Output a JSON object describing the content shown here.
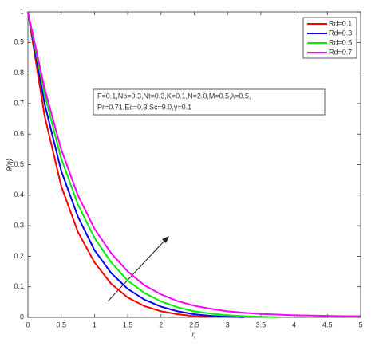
{
  "chart_data": {
    "type": "line",
    "xlabel": "η",
    "ylabel": "θ(η)",
    "x": [
      0,
      0.25,
      0.5,
      0.75,
      1,
      1.25,
      1.5,
      1.75,
      2,
      2.25,
      2.5,
      2.75,
      3,
      3.25,
      3.5,
      3.75,
      4,
      4.25,
      4.5,
      4.75,
      5
    ],
    "series": [
      {
        "name": "Rd=0.1",
        "color": "#ff0000",
        "values": [
          1,
          0.66,
          0.43,
          0.28,
          0.18,
          0.11,
          0.065,
          0.037,
          0.02,
          0.01,
          0.004,
          0.001,
          null,
          null,
          null,
          null,
          null,
          null,
          null,
          null,
          null
        ]
      },
      {
        "name": "Rd=0.3",
        "color": "#0000ff",
        "values": [
          1,
          0.7,
          0.48,
          0.33,
          0.22,
          0.145,
          0.093,
          0.058,
          0.035,
          0.02,
          0.01,
          0.005,
          0.002,
          0.0005,
          null,
          null,
          null,
          null,
          null,
          null,
          null
        ]
      },
      {
        "name": "Rd=0.5",
        "color": "#00ee00",
        "values": [
          1,
          0.73,
          0.52,
          0.37,
          0.26,
          0.18,
          0.12,
          0.08,
          0.052,
          0.033,
          0.02,
          0.012,
          0.007,
          0.004,
          0.002,
          0.0005,
          null,
          null,
          null,
          null,
          null
        ]
      },
      {
        "name": "Rd=0.7",
        "color": "#ff00ff",
        "values": [
          1,
          0.75,
          0.55,
          0.4,
          0.29,
          0.21,
          0.15,
          0.105,
          0.075,
          0.053,
          0.038,
          0.028,
          0.02,
          0.015,
          0.011,
          0.009,
          0.007,
          0.006,
          0.005,
          0.004,
          0.004
        ]
      }
    ],
    "xlim": [
      0,
      5
    ],
    "ylim": [
      0,
      1
    ],
    "xticks": [
      0,
      0.5,
      1,
      1.5,
      2,
      2.5,
      3,
      3.5,
      4,
      4.5,
      5
    ],
    "yticks": [
      0,
      0.1,
      0.2,
      0.3,
      0.4,
      0.5,
      0.6,
      0.7,
      0.8,
      0.9,
      1
    ],
    "grid": false,
    "legend": "upper right",
    "annotation": [
      "F=0.1,Nb=0.3,Nt=0.3,K=0.1,N=2.0,M=0.5,λ=0.5,",
      "Pr=0.71,Ec=0.3,Sc=9.0,γ=0.1"
    ]
  }
}
